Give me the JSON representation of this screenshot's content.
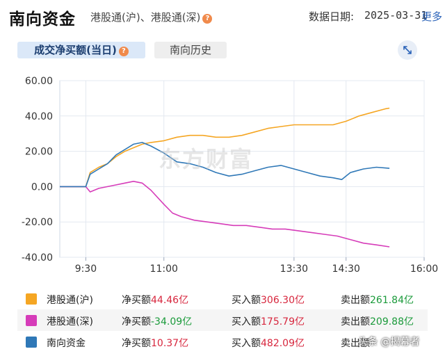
{
  "header": {
    "title": "南向资金",
    "subtitle": "港股通(沪)、港股通(深)",
    "help_icon": "?",
    "date_label": "数据日期:",
    "date_value": "2025-03-31",
    "more_label": "更多"
  },
  "tabs": [
    {
      "label": "成交净买额(当日)",
      "active": true
    },
    {
      "label": "南向历史",
      "active": false
    }
  ],
  "expand_icon": "expand-arrows-icon",
  "watermark": "东方财富",
  "colors": {
    "sh": "#f5a623",
    "sz": "#d63cb9",
    "south": "#2f78b7",
    "up": "#d7263d",
    "down": "#1a9a3a"
  },
  "chart_data": {
    "type": "line",
    "x_ticks": [
      "9:30",
      "11:00",
      "13:30",
      "14:30",
      "16:00"
    ],
    "y_ticks": [
      "60.00",
      "40.00",
      "20.00",
      "0.00",
      "-20.00",
      "-40.00"
    ],
    "ylim": [
      -40,
      60
    ],
    "grid": true,
    "series": [
      {
        "name": "港股通(沪)",
        "color": "#f5a623",
        "points": [
          [
            "9:00",
            0
          ],
          [
            "9:20",
            0
          ],
          [
            "9:30",
            0
          ],
          [
            "9:35",
            8
          ],
          [
            "9:45",
            11
          ],
          [
            "9:55",
            13
          ],
          [
            "10:05",
            17
          ],
          [
            "10:15",
            20
          ],
          [
            "10:25",
            22
          ],
          [
            "10:35",
            24
          ],
          [
            "10:45",
            25
          ],
          [
            "11:00",
            26
          ],
          [
            "11:15",
            28
          ],
          [
            "11:30",
            29
          ],
          [
            "11:45",
            29
          ],
          [
            "12:00",
            28
          ],
          [
            "12:15",
            28
          ],
          [
            "12:30",
            29
          ],
          [
            "12:45",
            31
          ],
          [
            "13:00",
            33
          ],
          [
            "13:15",
            34
          ],
          [
            "13:30",
            35
          ],
          [
            "13:45",
            35
          ],
          [
            "14:00",
            35
          ],
          [
            "14:15",
            35
          ],
          [
            "14:30",
            37
          ],
          [
            "14:45",
            40
          ],
          [
            "15:00",
            42
          ],
          [
            "15:15",
            44
          ],
          [
            "15:20",
            44.46
          ]
        ]
      },
      {
        "name": "港股通(深)",
        "color": "#d63cb9",
        "points": [
          [
            "9:00",
            0
          ],
          [
            "9:20",
            0
          ],
          [
            "9:30",
            0
          ],
          [
            "9:35",
            -3
          ],
          [
            "9:45",
            -1
          ],
          [
            "9:55",
            0
          ],
          [
            "10:05",
            1
          ],
          [
            "10:15",
            2
          ],
          [
            "10:25",
            3
          ],
          [
            "10:35",
            2
          ],
          [
            "10:45",
            -2
          ],
          [
            "11:00",
            -10
          ],
          [
            "11:10",
            -15
          ],
          [
            "11:20",
            -17
          ],
          [
            "11:35",
            -19
          ],
          [
            "11:50",
            -20
          ],
          [
            "12:05",
            -21
          ],
          [
            "12:20",
            -22
          ],
          [
            "12:35",
            -22
          ],
          [
            "12:50",
            -23
          ],
          [
            "13:05",
            -24
          ],
          [
            "13:20",
            -24
          ],
          [
            "13:35",
            -25
          ],
          [
            "13:50",
            -26
          ],
          [
            "14:05",
            -27
          ],
          [
            "14:20",
            -28
          ],
          [
            "14:35",
            -30
          ],
          [
            "14:50",
            -32
          ],
          [
            "15:05",
            -33
          ],
          [
            "15:20",
            -34.09
          ]
        ]
      },
      {
        "name": "南向资金",
        "color": "#2f78b7",
        "points": [
          [
            "9:00",
            0
          ],
          [
            "9:20",
            0
          ],
          [
            "9:30",
            0
          ],
          [
            "9:35",
            7
          ],
          [
            "9:45",
            10
          ],
          [
            "9:55",
            13
          ],
          [
            "10:05",
            18
          ],
          [
            "10:15",
            21
          ],
          [
            "10:25",
            24
          ],
          [
            "10:35",
            25
          ],
          [
            "10:45",
            23
          ],
          [
            "11:00",
            19
          ],
          [
            "11:15",
            14
          ],
          [
            "11:30",
            13
          ],
          [
            "11:45",
            11
          ],
          [
            "12:00",
            8
          ],
          [
            "12:15",
            6
          ],
          [
            "12:30",
            7
          ],
          [
            "12:45",
            9
          ],
          [
            "13:00",
            11
          ],
          [
            "13:15",
            12
          ],
          [
            "13:30",
            10
          ],
          [
            "13:45",
            8
          ],
          [
            "14:00",
            6
          ],
          [
            "14:15",
            5
          ],
          [
            "14:25",
            4
          ],
          [
            "14:35",
            8
          ],
          [
            "14:50",
            10
          ],
          [
            "15:05",
            11
          ],
          [
            "15:20",
            10.37
          ]
        ]
      }
    ]
  },
  "legend": [
    {
      "name": "港股通(沪)",
      "color": "#f5a623",
      "net_label": "净买额",
      "net_value": "44.46亿",
      "net_dir": "up",
      "buy_label": "买入额",
      "buy_value": "306.30亿",
      "sell_label": "卖出额",
      "sell_value": "261.84亿"
    },
    {
      "name": "港股通(深)",
      "color": "#d63cb9",
      "net_label": "净买额",
      "net_value": "-34.09亿",
      "net_dir": "down",
      "buy_label": "买入额",
      "buy_value": "175.79亿",
      "sell_label": "卖出额",
      "sell_value": "209.88亿"
    },
    {
      "name": "南向资金",
      "color": "#2f78b7",
      "net_label": "净买额",
      "net_value": "10.37亿",
      "net_dir": "up",
      "buy_label": "买入额",
      "buy_value": "482.09亿",
      "sell_label": "卖出额",
      "sell_value": ""
    }
  ],
  "credit": "头条 @揭幕者"
}
